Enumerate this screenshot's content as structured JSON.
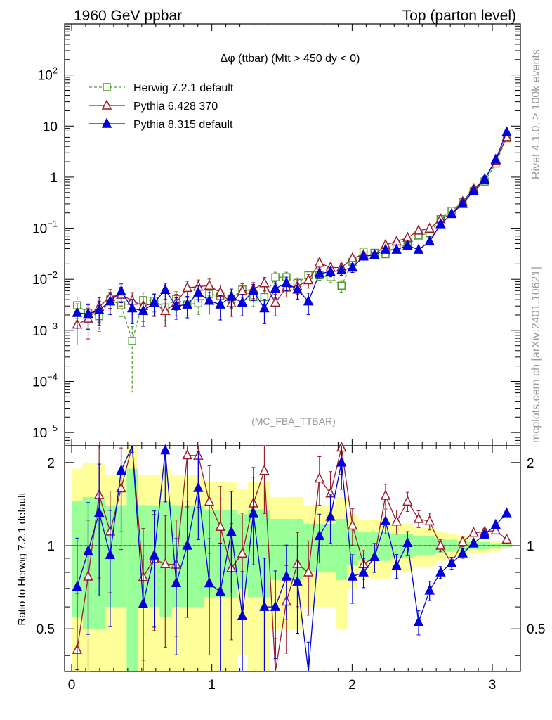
{
  "header": {
    "left": "1960 GeV ppbar",
    "right": "Top (parton level)"
  },
  "side": {
    "rivet": "Rivet 4.1.0, ≥ 100k events",
    "mcplots": "mcplots.cern.ch [arXiv:2401.10621]"
  },
  "chart_data": {
    "type": "line",
    "title": "Δφ (ttbar) (Mtt > 450 dy < 0)",
    "watermark": "(MC_FBA_TTBAR)",
    "ratio_ylabel": "Ratio to Herwig 7.2.1 default",
    "xlim": [
      -0.05,
      3.2
    ],
    "ylim_main": [
      5.5e-06,
      1000
    ],
    "ylim_ratio": [
      0.35,
      2.3
    ],
    "x_ticks": [
      0,
      1,
      2,
      3
    ],
    "x_tick_labels": [
      "0",
      "1",
      "2",
      "3"
    ],
    "y_ticks_main": [
      1e-05,
      0.0001,
      0.001,
      0.01,
      0.1,
      1,
      10,
      100
    ],
    "y_ticks_ratio": [
      0.5,
      1,
      2
    ],
    "y_tick_labels_ratio": [
      "0.5",
      "1",
      "2"
    ],
    "x": [
      0.0393,
      0.1178,
      0.1963,
      0.2749,
      0.3534,
      0.432,
      0.5105,
      0.589,
      0.6676,
      0.7461,
      0.8247,
      0.9032,
      0.9817,
      1.0603,
      1.1388,
      1.2174,
      1.2959,
      1.3744,
      1.453,
      1.5315,
      1.6101,
      1.6886,
      1.7671,
      1.8457,
      1.9242,
      2.0028,
      2.0813,
      2.1598,
      2.2384,
      2.3169,
      2.3955,
      2.474,
      2.5525,
      2.6311,
      2.7096,
      2.7882,
      2.8667,
      2.9452,
      3.0238,
      3.1023
    ],
    "series": [
      {
        "name": "Herwig 7.2.1 default",
        "color": "#4b9a2a",
        "marker": "open-square",
        "line": "dashed",
        "values": [
          0.0031,
          0.0022,
          0.0019,
          0.004,
          0.0031,
          0.00062,
          0.0039,
          0.0038,
          0.0028,
          0.0041,
          0.0032,
          0.0034,
          0.0052,
          0.0047,
          0.0041,
          0.0063,
          0.0045,
          0.0045,
          0.011,
          0.011,
          0.0085,
          0.012,
          0.012,
          0.011,
          0.0075,
          0.022,
          0.035,
          0.033,
          0.031,
          0.045,
          0.045,
          0.072,
          0.08,
          0.15,
          0.22,
          0.32,
          0.53,
          0.82,
          1.85,
          5.8
        ],
        "err_frac": [
          0.45,
          0.5,
          0.5,
          0.4,
          0.4,
          0.9,
          0.4,
          0.4,
          0.45,
          0.4,
          0.4,
          0.4,
          0.35,
          0.35,
          0.35,
          0.3,
          0.35,
          0.35,
          0.25,
          0.25,
          0.25,
          0.2,
          0.2,
          0.2,
          0.25,
          0.15,
          0.12,
          0.12,
          0.12,
          0.1,
          0.1,
          0.08,
          0.08,
          0.06,
          0.05,
          0.04,
          0.03,
          0.03,
          0.02,
          0.01
        ]
      },
      {
        "name": "Pythia 6.428 370",
        "color": "#9b1c2b",
        "marker": "open-triangle",
        "line": "solid",
        "values": [
          0.0013,
          0.0017,
          0.0029,
          0.0045,
          0.005,
          0.0038,
          0.003,
          0.0034,
          0.0024,
          0.0035,
          0.0068,
          0.0072,
          0.0075,
          0.0055,
          0.0034,
          0.0059,
          0.0064,
          0.0084,
          0.0035,
          0.0069,
          0.0073,
          0.0096,
          0.021,
          0.017,
          0.017,
          0.026,
          0.03,
          0.03,
          0.047,
          0.055,
          0.065,
          0.09,
          0.098,
          0.15,
          0.19,
          0.33,
          0.59,
          0.92,
          2.1,
          6.1
        ],
        "err_frac": [
          0.6,
          0.6,
          0.5,
          0.4,
          0.4,
          0.45,
          0.5,
          0.45,
          0.5,
          0.45,
          0.35,
          0.35,
          0.35,
          0.4,
          0.45,
          0.4,
          0.35,
          0.3,
          0.45,
          0.35,
          0.3,
          0.3,
          0.2,
          0.2,
          0.2,
          0.15,
          0.12,
          0.12,
          0.1,
          0.1,
          0.08,
          0.07,
          0.07,
          0.05,
          0.05,
          0.04,
          0.03,
          0.03,
          0.02,
          0.01
        ]
      },
      {
        "name": "Pythia 8.315 default",
        "color": "#0000dd",
        "marker": "filled-triangle",
        "line": "solid",
        "values": [
          0.0022,
          0.0021,
          0.0025,
          0.0037,
          0.0058,
          0.0027,
          0.0024,
          0.0035,
          0.0062,
          0.003,
          0.0032,
          0.0055,
          0.0038,
          0.0032,
          0.0046,
          0.0035,
          0.0059,
          0.0027,
          0.0066,
          0.0085,
          0.0063,
          0.0037,
          0.013,
          0.014,
          0.015,
          0.017,
          0.028,
          0.03,
          0.038,
          0.038,
          0.046,
          0.038,
          0.055,
          0.12,
          0.19,
          0.3,
          0.54,
          0.9,
          2.2,
          7.6
        ],
        "err_frac": [
          0.5,
          0.5,
          0.5,
          0.45,
          0.4,
          0.5,
          0.5,
          0.45,
          0.35,
          0.45,
          0.45,
          0.35,
          0.45,
          0.5,
          0.4,
          0.45,
          0.35,
          0.5,
          0.35,
          0.3,
          0.35,
          0.45,
          0.2,
          0.2,
          0.2,
          0.2,
          0.12,
          0.12,
          0.1,
          0.1,
          0.1,
          0.1,
          0.08,
          0.05,
          0.05,
          0.04,
          0.03,
          0.03,
          0.02,
          0.01
        ]
      }
    ]
  }
}
